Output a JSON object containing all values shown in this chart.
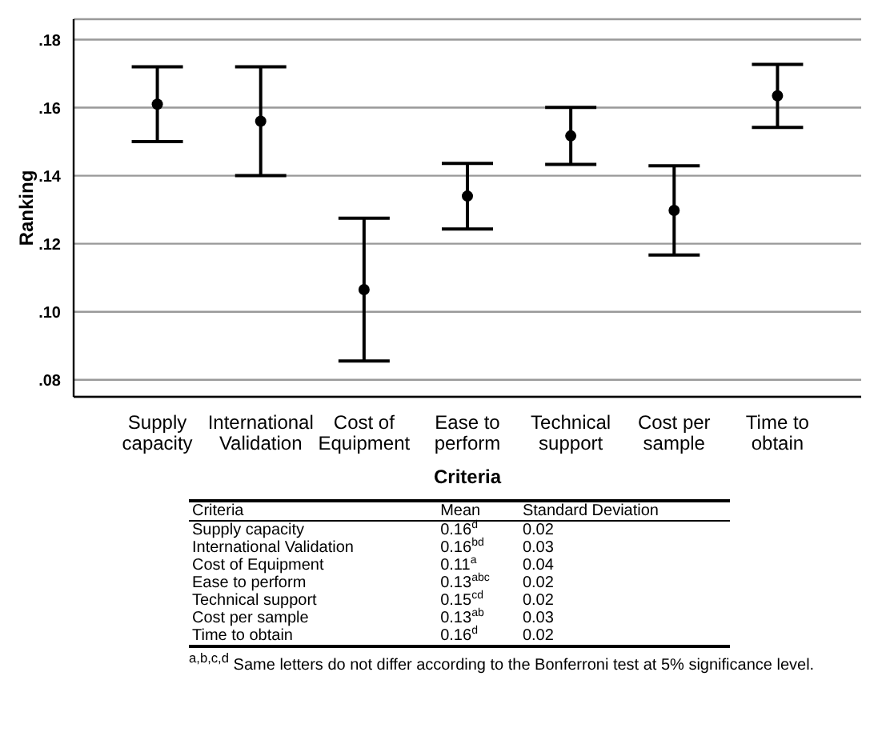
{
  "chart_data": {
    "type": "scatter",
    "xlabel": "Criteria",
    "ylabel": "Ranking",
    "categories": [
      "Supply capacity",
      "International Validation",
      "Cost of Equipment",
      "Ease to perform",
      "Technical support",
      "Cost per sample",
      "Time to obtain"
    ],
    "series": [
      {
        "color": "#000000",
        "values": [
          0.161,
          0.156,
          0.1065,
          0.134,
          0.1517,
          0.1298,
          0.1635
        ],
        "errors": [
          [
            0.15,
            0.172
          ],
          [
            0.14,
            0.172
          ],
          [
            0.0855,
            0.1275
          ],
          [
            0.1243,
            0.1436
          ],
          [
            0.1433,
            0.1601
          ],
          [
            0.1167,
            0.1429
          ],
          [
            0.1542,
            0.1727
          ]
        ]
      }
    ],
    "ylim": [
      0.075,
      0.186
    ],
    "yticks": [
      {
        "value": 0.08,
        "label": ".08"
      },
      {
        "value": 0.1,
        "label": ".10"
      },
      {
        "value": 0.12,
        "label": ".12"
      },
      {
        "value": 0.14,
        "label": ".14"
      },
      {
        "value": 0.16,
        "label": ".16"
      },
      {
        "value": 0.18,
        "label": ".18"
      }
    ],
    "grid": "y",
    "marker": "circle",
    "annotations": [
      "Criteria",
      "Mean",
      "Standard Deviation",
      "0.16$^{d}$",
      "0.16$^{bd}$",
      "0.11$^{a}$",
      "0.13$^{abc}$",
      "0.15$^{cd}$",
      "0.13$^{ab}$",
      "0.16$^{d}$",
      "0.02",
      "0.03",
      "0.04",
      "0.02",
      "0.02",
      "0.03",
      "0.02",
      "$^{a,b,c,d}$ Same letters do not differ according to the Bonferroni test at 5% significance level."
    ]
  }
}
